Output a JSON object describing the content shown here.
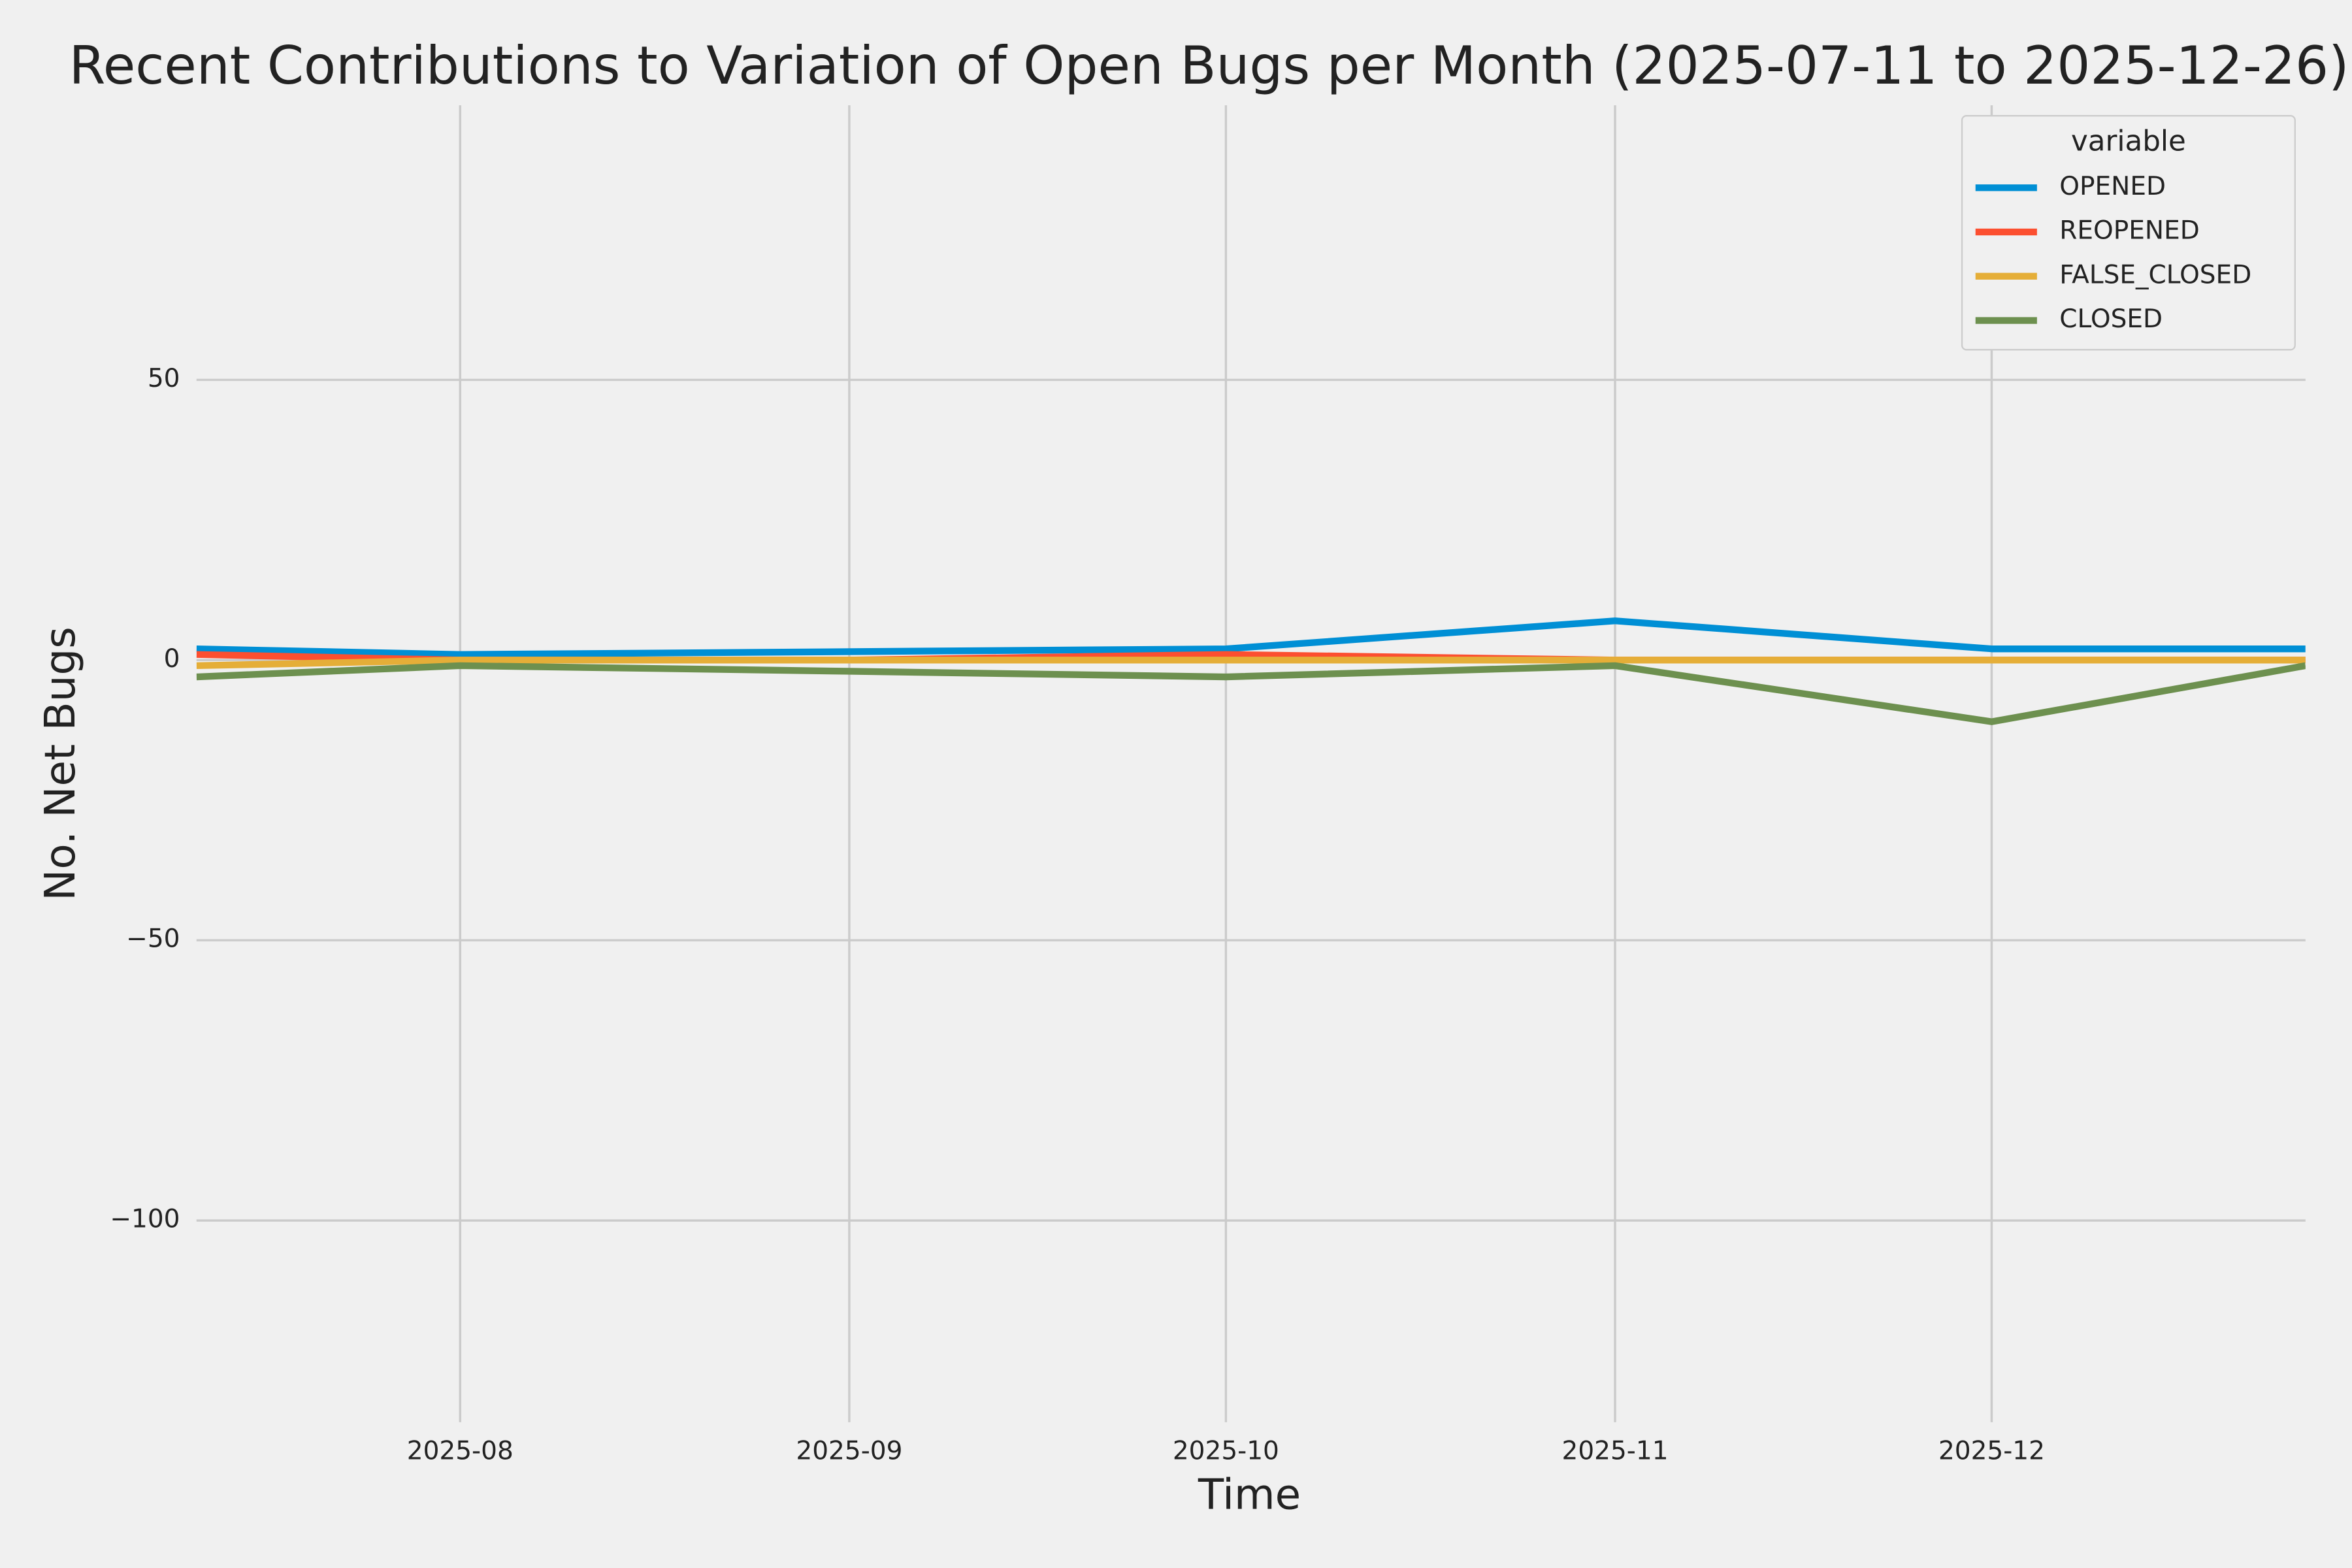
{
  "chart_data": {
    "type": "line",
    "title": "Recent Contributions to Variation of Open Bugs per Month (2025-07-11 to 2025-12-26)",
    "x_label": "Time",
    "y_label": "No. Net Bugs",
    "legend_title": "variable",
    "legend_position": "upper right",
    "grid": true,
    "x": [
      "2025-07-11",
      "2025-08-01",
      "2025-09-01",
      "2025-10-01",
      "2025-11-01",
      "2025-12-01",
      "2025-12-26"
    ],
    "xlim": [
      "2025-07-11",
      "2025-12-26"
    ],
    "xticks": [
      {
        "value": "2025-08-01",
        "label": "2025-08"
      },
      {
        "value": "2025-09-01",
        "label": "2025-09"
      },
      {
        "value": "2025-10-01",
        "label": "2025-10"
      },
      {
        "value": "2025-11-01",
        "label": "2025-11"
      },
      {
        "value": "2025-12-01",
        "label": "2025-12"
      }
    ],
    "ylim": [
      -136,
      99
    ],
    "yticks": [
      {
        "value": -100,
        "label": "−100"
      },
      {
        "value": -50,
        "label": "−50"
      },
      0,
      50
    ],
    "series": [
      {
        "name": "OPENED",
        "color": "#008fd5",
        "values": [
          2,
          1,
          1.5,
          2,
          7,
          2,
          2
        ]
      },
      {
        "name": "REOPENED",
        "color": "#fc4f30",
        "values": [
          1,
          0,
          0,
          1,
          0,
          0,
          0
        ]
      },
      {
        "name": "FALSE_CLOSED",
        "color": "#e5ae38",
        "values": [
          -1,
          0,
          0,
          0,
          0,
          0,
          0
        ]
      },
      {
        "name": "CLOSED",
        "color": "#6d904f",
        "values": [
          -3,
          -1,
          -2,
          -3,
          -1,
          -11,
          -1
        ]
      }
    ]
  }
}
